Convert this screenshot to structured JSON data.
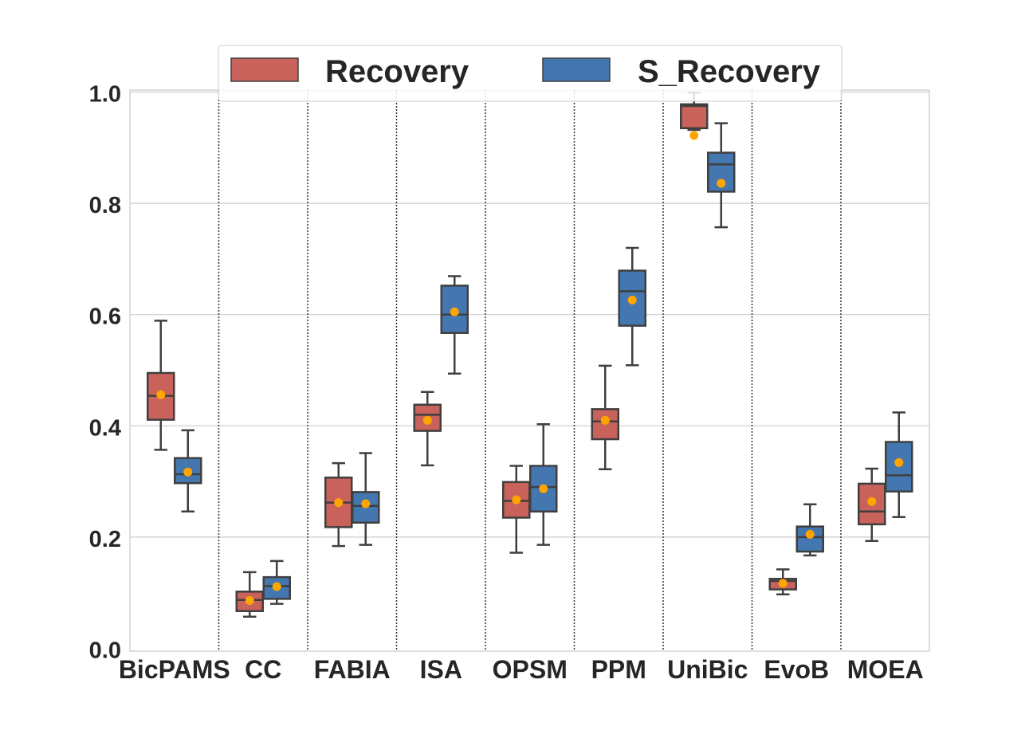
{
  "chart_data": {
    "type": "box",
    "title": "",
    "xlabel": "",
    "ylabel": "",
    "ylim": [
      0.0,
      1.0
    ],
    "yticks": [
      "0.0",
      "0.2",
      "0.4",
      "0.6",
      "0.8",
      "1.0"
    ],
    "grid": "horizontal",
    "legend_position": "top",
    "categories": [
      "BicPAMS",
      "CC",
      "FABIA",
      "ISA",
      "OPSM",
      "PPM",
      "UniBic",
      "EvoB",
      "MOEA"
    ],
    "series": [
      {
        "name": "Recovery",
        "color": "#c9625a",
        "boxes": [
          {
            "min": 0.357,
            "q1": 0.411,
            "median": 0.454,
            "q3": 0.495,
            "max": 0.589,
            "mean": 0.456
          },
          {
            "min": 0.057,
            "q1": 0.067,
            "median": 0.087,
            "q3": 0.102,
            "max": 0.137,
            "mean": 0.086
          },
          {
            "min": 0.184,
            "q1": 0.218,
            "median": 0.262,
            "q3": 0.307,
            "max": 0.333,
            "mean": 0.262
          },
          {
            "min": 0.329,
            "q1": 0.391,
            "median": 0.42,
            "q3": 0.438,
            "max": 0.461,
            "mean": 0.41
          },
          {
            "min": 0.172,
            "q1": 0.235,
            "median": 0.265,
            "q3": 0.299,
            "max": 0.328,
            "mean": 0.267
          },
          {
            "min": 0.322,
            "q1": 0.376,
            "median": 0.408,
            "q3": 0.43,
            "max": 0.508,
            "mean": 0.41
          },
          {
            "min": 0.932,
            "q1": 0.935,
            "median": 0.975,
            "q3": 0.978,
            "max": 0.999,
            "mean": 0.922
          },
          {
            "min": 0.097,
            "q1": 0.106,
            "median": 0.121,
            "q3": 0.125,
            "max": 0.142,
            "mean": 0.117
          },
          {
            "min": 0.193,
            "q1": 0.223,
            "median": 0.246,
            "q3": 0.296,
            "max": 0.323,
            "mean": 0.264
          }
        ]
      },
      {
        "name": "S_Recovery",
        "color": "#4477b0",
        "boxes": [
          {
            "min": 0.246,
            "q1": 0.297,
            "median": 0.313,
            "q3": 0.342,
            "max": 0.392,
            "mean": 0.317
          },
          {
            "min": 0.08,
            "q1": 0.089,
            "median": 0.112,
            "q3": 0.128,
            "max": 0.157,
            "mean": 0.111
          },
          {
            "min": 0.186,
            "q1": 0.226,
            "median": 0.256,
            "q3": 0.281,
            "max": 0.351,
            "mean": 0.26
          },
          {
            "min": 0.494,
            "q1": 0.567,
            "median": 0.6,
            "q3": 0.652,
            "max": 0.669,
            "mean": 0.605
          },
          {
            "min": 0.186,
            "q1": 0.246,
            "median": 0.29,
            "q3": 0.328,
            "max": 0.403,
            "mean": 0.287
          },
          {
            "min": 0.509,
            "q1": 0.58,
            "median": 0.642,
            "q3": 0.679,
            "max": 0.72,
            "mean": 0.626
          },
          {
            "min": 0.757,
            "q1": 0.821,
            "median": 0.87,
            "q3": 0.891,
            "max": 0.944,
            "mean": 0.836
          },
          {
            "min": 0.167,
            "q1": 0.174,
            "median": 0.2,
            "q3": 0.219,
            "max": 0.259,
            "mean": 0.205
          },
          {
            "min": 0.236,
            "q1": 0.282,
            "median": 0.311,
            "q3": 0.371,
            "max": 0.424,
            "mean": 0.334
          }
        ]
      }
    ]
  },
  "colors": {
    "mean_marker": "#ffa500",
    "box_edge": "#3f3f3f",
    "grid": "#cccccc",
    "separator": "#333333"
  }
}
